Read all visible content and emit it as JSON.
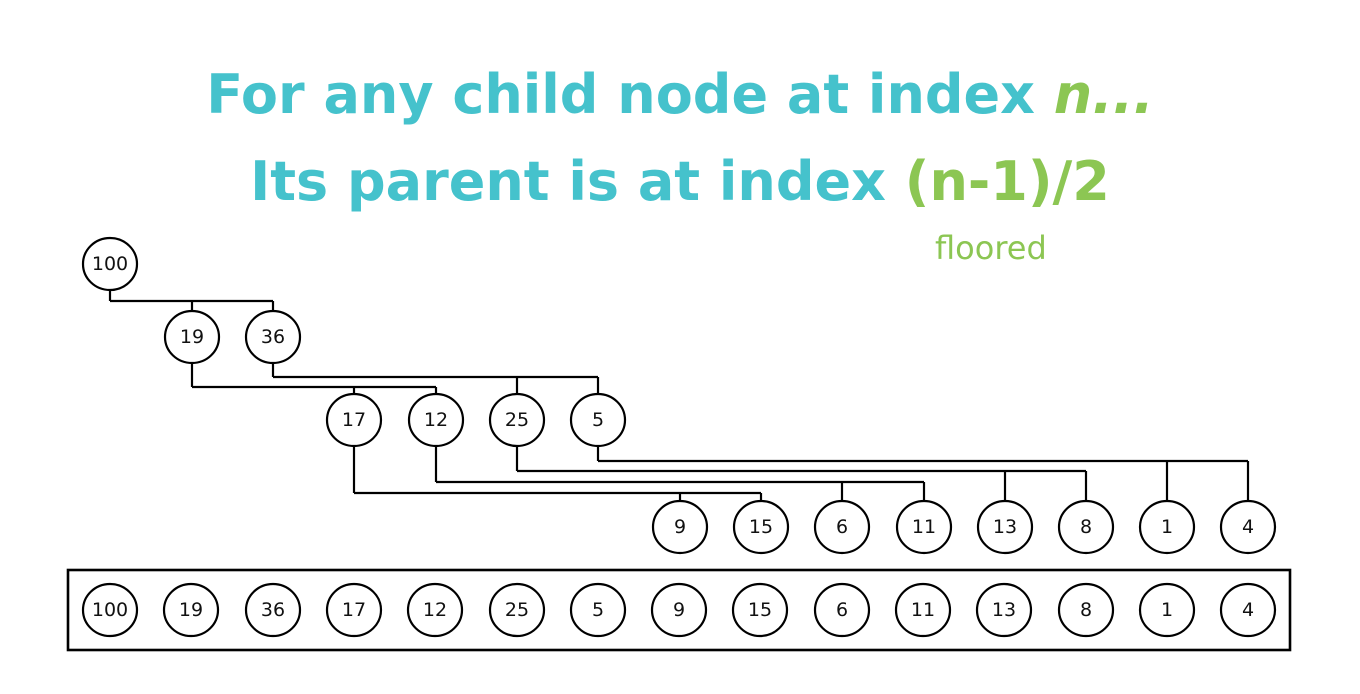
{
  "title": {
    "line1_text": "For any child node at index ",
    "line1_var": "n...",
    "line2_text": "Its parent is at index ",
    "line2_formula": "(n-1)/2",
    "note": "floored"
  },
  "colors": {
    "title": "#45c2cc",
    "highlight": "#8cc653",
    "stroke": "#000000"
  },
  "heap": {
    "values": [
      "100",
      "19",
      "36",
      "17",
      "12",
      "25",
      "5",
      "9",
      "15",
      "6",
      "11",
      "13",
      "8",
      "1",
      "4"
    ]
  },
  "array": {
    "values": [
      "100",
      "19",
      "36",
      "17",
      "12",
      "25",
      "5",
      "9",
      "15",
      "6",
      "11",
      "13",
      "8",
      "1",
      "4"
    ]
  }
}
